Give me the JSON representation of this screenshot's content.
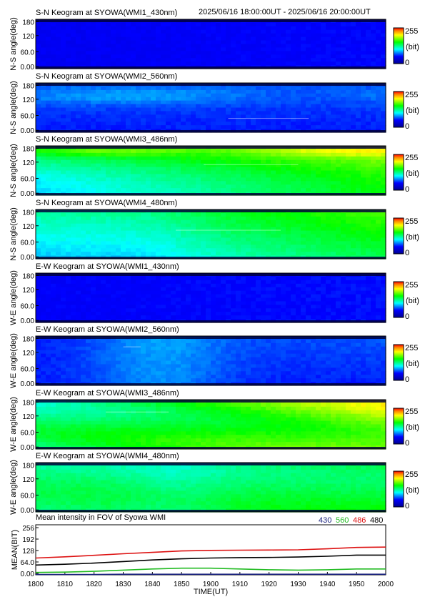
{
  "header_time": "2025/06/16 18:00:00UT - 2025/06/16 20:00:00UT",
  "colorbar": {
    "max": "255",
    "unit": "(bit)",
    "min": "0"
  },
  "panels": [
    {
      "title": "S-N Keogram at SYOWA(WMI1_430nm)",
      "ylabel": "N-S angle(deg)",
      "mode": "430"
    },
    {
      "title": "S-N Keogram at SYOWA(WMI2_560nm)",
      "ylabel": "N-S angle(deg)",
      "mode": "560"
    },
    {
      "title": "S-N Keogram at SYOWA(WMI3_486nm)",
      "ylabel": "N-S angle(deg)",
      "mode": "486"
    },
    {
      "title": "S-N Keogram at SYOWA(WMI4_480nm)",
      "ylabel": "N-S angle(deg)",
      "mode": "480"
    },
    {
      "title": "E-W Keogram at SYOWA(WMI1_430nm)",
      "ylabel": "W-E angle(deg)",
      "mode": "430ew"
    },
    {
      "title": "E-W Keogram at SYOWA(WMI2_560nm)",
      "ylabel": "W-E angle(deg)",
      "mode": "560ew"
    },
    {
      "title": "E-W Keogram at SYOWA(WMI3_486nm)",
      "ylabel": "W-E angle(deg)",
      "mode": "486ew"
    },
    {
      "title": "E-W Keogram at SYOWA(WMI4_480nm)",
      "ylabel": "W-E angle(deg)",
      "mode": "480ew"
    }
  ],
  "angle_ticks": [
    "180",
    "120",
    "60.0",
    "0.00"
  ],
  "chart_data": {
    "type": "line",
    "title": "Mean intensity in FOV of Syowa WMI",
    "xlabel": "TIME(UT)",
    "ylabel": "MEAN(BIT)",
    "xlim": [
      1800,
      2000
    ],
    "ylim": [
      0,
      256
    ],
    "x_ticks": [
      "1800",
      "1810",
      "1820",
      "1830",
      "1840",
      "1850",
      "1900",
      "1910",
      "1920",
      "1930",
      "1940",
      "1950",
      "2000"
    ],
    "y_ticks": [
      "256",
      "192",
      "128",
      "64.0",
      "0.00"
    ],
    "x_minutes": [
      0,
      10,
      20,
      30,
      40,
      50,
      60,
      70,
      80,
      90,
      100,
      110,
      120
    ],
    "series": [
      {
        "name": "430",
        "color": "#1a237e",
        "values": [
          2,
          2,
          2,
          3,
          3,
          3,
          3,
          3,
          3,
          3,
          3,
          3,
          3
        ]
      },
      {
        "name": "560",
        "color": "#22bb22",
        "values": [
          12,
          14,
          18,
          24,
          30,
          34,
          34,
          30,
          26,
          24,
          26,
          30,
          30
        ]
      },
      {
        "name": "486",
        "color": "#dd1111",
        "values": [
          86,
          92,
          100,
          108,
          115,
          122,
          125,
          126,
          127,
          128,
          133,
          140,
          142
        ]
      },
      {
        "name": "480",
        "color": "#000000",
        "values": [
          50,
          54,
          60,
          68,
          76,
          82,
          86,
          88,
          89,
          91,
          95,
          101,
          101
        ]
      }
    ]
  }
}
